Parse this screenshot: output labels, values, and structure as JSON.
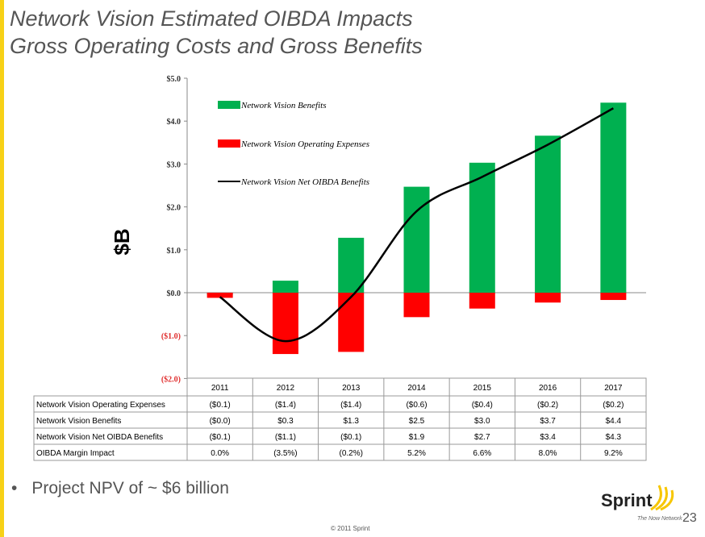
{
  "title": {
    "line1": "Network Vision Estimated OIBDA Impacts",
    "line2": "Gross Operating Costs and Gross Benefits"
  },
  "bullet": "Project NPV of ~ $6 billion",
  "footer": {
    "logo": "Sprint",
    "tagline": "The Now Network",
    "page": "23",
    "copyright": "© 2011 Sprint"
  },
  "chart_data": {
    "type": "bar",
    "ylabel": "$B",
    "ylim": [
      -2,
      5
    ],
    "yticks": [
      {
        "v": 5,
        "label": "$5.0"
      },
      {
        "v": 4,
        "label": "$4.0"
      },
      {
        "v": 3,
        "label": "$3.0"
      },
      {
        "v": 2,
        "label": "$2.0"
      },
      {
        "v": 1,
        "label": "$1.0"
      },
      {
        "v": 0,
        "label": "$0.0"
      },
      {
        "v": -1,
        "label": "($1.0)"
      },
      {
        "v": -2,
        "label": "($2.0)"
      }
    ],
    "categories": [
      "2011",
      "2012",
      "2013",
      "2014",
      "2015",
      "2016",
      "2017"
    ],
    "series": [
      {
        "name": "Network Vision Benefits",
        "type": "bar",
        "color": "#00b050",
        "values": [
          -0.05,
          0.28,
          1.28,
          2.47,
          3.03,
          3.66,
          4.43
        ]
      },
      {
        "name": "Network Vision Operating Expenses",
        "type": "bar",
        "color": "#ff0000",
        "values": [
          -0.12,
          -1.43,
          -1.38,
          -0.57,
          -0.37,
          -0.23,
          -0.17
        ]
      },
      {
        "name": "Network Vision Net OIBDA Benefits",
        "type": "line",
        "color": "#000000",
        "values": [
          -0.1,
          -1.13,
          -0.1,
          1.9,
          2.7,
          3.45,
          4.3
        ]
      }
    ],
    "legend_position": "top-left",
    "table": {
      "rows": [
        {
          "label": "Network Vision Operating Expenses",
          "cells": [
            "($0.1)",
            "($1.4)",
            "($1.4)",
            "($0.6)",
            "($0.4)",
            "($0.2)",
            "($0.2)"
          ]
        },
        {
          "label": "Network Vision Benefits",
          "cells": [
            "($0.0)",
            "$0.3",
            "$1.3",
            "$2.5",
            "$3.0",
            "$3.7",
            "$4.4"
          ]
        },
        {
          "label": "Network Vision Net OIBDA Benefits",
          "cells": [
            "($0.1)",
            "($1.1)",
            "($0.1)",
            "$1.9",
            "$2.7",
            "$3.4",
            "$4.3"
          ]
        },
        {
          "label": "OIBDA Margin Impact",
          "cells": [
            "0.0%",
            "(3.5%)",
            "(0.2%)",
            "5.2%",
            "6.6%",
            "8.0%",
            "9.2%"
          ]
        }
      ]
    }
  }
}
